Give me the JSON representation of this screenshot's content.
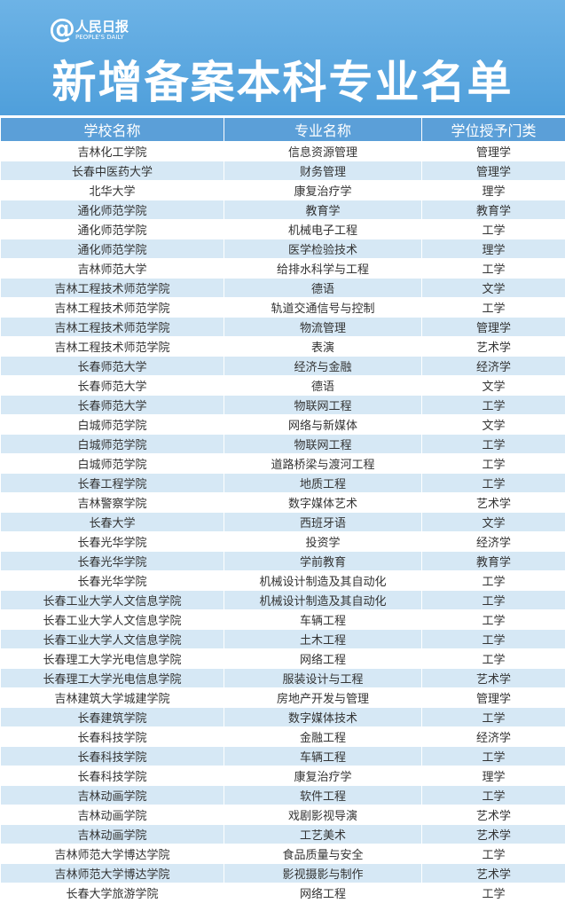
{
  "header": {
    "logo": "人民日报",
    "logo_sub": "PEOPLE'S DAILY",
    "title": "新增备案本科专业名单"
  },
  "table": {
    "columns": [
      "学校名称",
      "专业名称",
      "学位授予门类"
    ],
    "rows": [
      [
        "吉林化工学院",
        "信息资源管理",
        "管理学"
      ],
      [
        "长春中医药大学",
        "财务管理",
        "管理学"
      ],
      [
        "北华大学",
        "康复治疗学",
        "理学"
      ],
      [
        "通化师范学院",
        "教育学",
        "教育学"
      ],
      [
        "通化师范学院",
        "机械电子工程",
        "工学"
      ],
      [
        "通化师范学院",
        "医学检验技术",
        "理学"
      ],
      [
        "吉林师范大学",
        "给排水科学与工程",
        "工学"
      ],
      [
        "吉林工程技术师范学院",
        "德语",
        "文学"
      ],
      [
        "吉林工程技术师范学院",
        "轨道交通信号与控制",
        "工学"
      ],
      [
        "吉林工程技术师范学院",
        "物流管理",
        "管理学"
      ],
      [
        "吉林工程技术师范学院",
        "表演",
        "艺术学"
      ],
      [
        "长春师范大学",
        "经济与金融",
        "经济学"
      ],
      [
        "长春师范大学",
        "德语",
        "文学"
      ],
      [
        "长春师范大学",
        "物联网工程",
        "工学"
      ],
      [
        "白城师范学院",
        "网络与新媒体",
        "文学"
      ],
      [
        "白城师范学院",
        "物联网工程",
        "工学"
      ],
      [
        "白城师范学院",
        "道路桥梁与渡河工程",
        "工学"
      ],
      [
        "长春工程学院",
        "地质工程",
        "工学"
      ],
      [
        "吉林警察学院",
        "数字媒体艺术",
        "艺术学"
      ],
      [
        "长春大学",
        "西班牙语",
        "文学"
      ],
      [
        "长春光华学院",
        "投资学",
        "经济学"
      ],
      [
        "长春光华学院",
        "学前教育",
        "教育学"
      ],
      [
        "长春光华学院",
        "机械设计制造及其自动化",
        "工学"
      ],
      [
        "长春工业大学人文信息学院",
        "机械设计制造及其自动化",
        "工学"
      ],
      [
        "长春工业大学人文信息学院",
        "车辆工程",
        "工学"
      ],
      [
        "长春工业大学人文信息学院",
        "土木工程",
        "工学"
      ],
      [
        "长春理工大学光电信息学院",
        "网络工程",
        "工学"
      ],
      [
        "长春理工大学光电信息学院",
        "服装设计与工程",
        "艺术学"
      ],
      [
        "吉林建筑大学城建学院",
        "房地产开发与管理",
        "管理学"
      ],
      [
        "长春建筑学院",
        "数字媒体技术",
        "工学"
      ],
      [
        "长春科技学院",
        "金融工程",
        "经济学"
      ],
      [
        "长春科技学院",
        "车辆工程",
        "工学"
      ],
      [
        "长春科技学院",
        "康复治疗学",
        "理学"
      ],
      [
        "吉林动画学院",
        "软件工程",
        "工学"
      ],
      [
        "吉林动画学院",
        "戏剧影视导演",
        "艺术学"
      ],
      [
        "吉林动画学院",
        "工艺美术",
        "艺术学"
      ],
      [
        "吉林师范大学博达学院",
        "食品质量与安全",
        "工学"
      ],
      [
        "吉林师范大学博达学院",
        "影视摄影与制作",
        "艺术学"
      ],
      [
        "长春大学旅游学院",
        "网络工程",
        "工学"
      ]
    ]
  }
}
